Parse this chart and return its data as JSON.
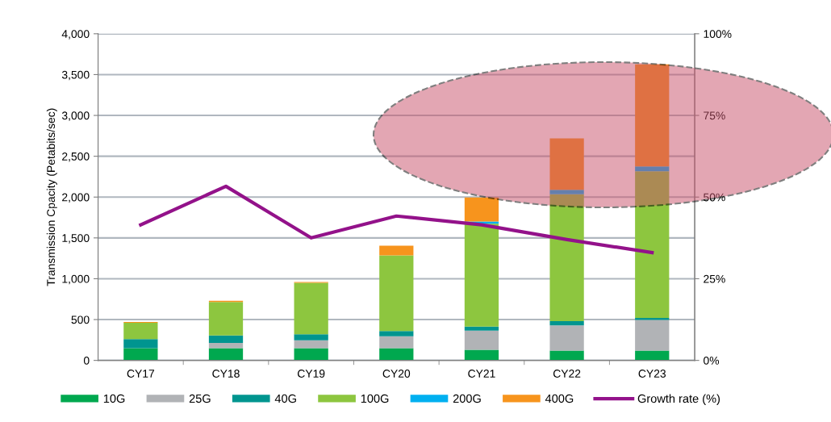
{
  "chart_data": {
    "type": "bar",
    "stacked": true,
    "ylabel": "Transmission Cpacity (Petabits/sec)",
    "categories": [
      "CY17",
      "CY18",
      "CY19",
      "CY20",
      "CY21",
      "CY22",
      "CY23"
    ],
    "series": [
      {
        "name": "10G",
        "color": "#00a84f",
        "values": [
          150,
          150,
          150,
          150,
          130,
          120,
          120
        ]
      },
      {
        "name": "25G",
        "color": "#b1b3b6",
        "values": [
          null,
          65,
          95,
          145,
          235,
          310,
          375
        ]
      },
      {
        "name": "40G",
        "color": "#00958f",
        "values": [
          110,
          90,
          75,
          65,
          50,
          50,
          25
        ]
      },
      {
        "name": "100G",
        "color": "#8dc63f",
        "values": [
          200,
          410,
          630,
          925,
          1260,
          1555,
          1795
        ]
      },
      {
        "name": "200G",
        "color": "#00b0f0",
        "values": [
          0,
          0,
          0,
          0,
          25,
          53,
          60
        ]
      },
      {
        "name": "400G",
        "color": "#f7941d",
        "values": [
          10,
          15,
          10,
          120,
          295,
          630,
          1250
        ]
      },
      {
        "name": "Growth rate (%)",
        "type": "line",
        "axis": "y2",
        "color": "#93128a",
        "values": [
          41.5,
          53.3,
          37.5,
          44.2,
          41.5,
          37,
          33
        ]
      }
    ],
    "ylim": [
      0,
      4000
    ],
    "yticks": [
      {
        "value": 0,
        "label": "0"
      },
      {
        "value": 500,
        "label": "500"
      },
      {
        "value": 1000,
        "label": "1,000"
      },
      {
        "value": 1500,
        "label": "1,500"
      },
      {
        "value": 2000,
        "label": "2,000"
      },
      {
        "value": 2500,
        "label": "2,500"
      },
      {
        "value": 3000,
        "label": "3,000"
      },
      {
        "value": 3500,
        "label": "3,500"
      },
      {
        "value": 4000,
        "label": "4,000"
      }
    ],
    "y2lim": [
      0,
      100
    ],
    "y2ticks": [
      {
        "value": 0,
        "label": "0%"
      },
      {
        "value": 25,
        "label": "25%"
      },
      {
        "value": 50,
        "label": "50%"
      },
      {
        "value": 75,
        "label": "75%"
      },
      {
        "value": 100,
        "label": "100%"
      }
    ],
    "grid": "y",
    "legend": "bottom",
    "marker": "none",
    "line_style": "solid"
  }
}
